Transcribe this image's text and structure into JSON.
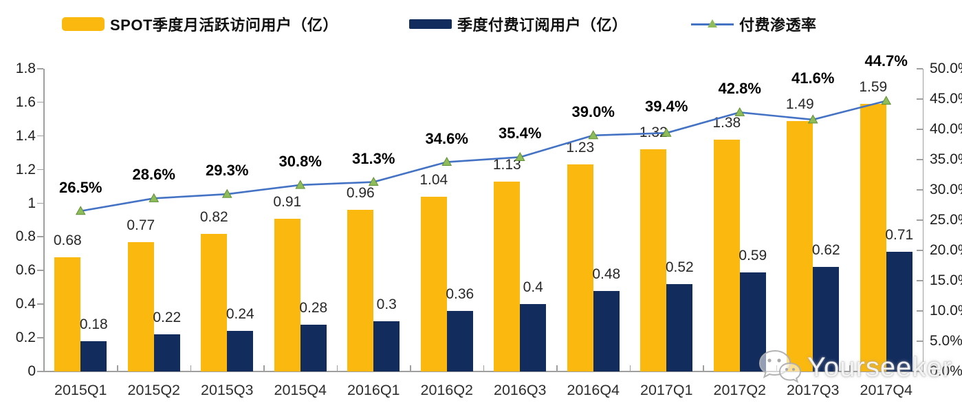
{
  "legend": {
    "items": [
      {
        "label": "SPOT季度月活跃访问用户（亿）",
        "color": "#FBB80F",
        "type": "bar"
      },
      {
        "label": "季度付费订阅用户（亿）",
        "color": "#122C5E",
        "type": "bar"
      },
      {
        "label": "付费渗透率",
        "color": "#4472C4",
        "marker_color": "#8FBC5A",
        "type": "line"
      }
    ]
  },
  "watermark": {
    "text": "Yourseeker",
    "icon": "wechat-icon"
  },
  "chart_data": {
    "type": "bar+line",
    "title": "",
    "categories": [
      "2015Q1",
      "2015Q2",
      "2015Q3",
      "2015Q4",
      "2016Q1",
      "2016Q2",
      "2016Q3",
      "2016Q4",
      "2017Q1",
      "2017Q2",
      "2017Q3",
      "2017Q4"
    ],
    "series": [
      {
        "name": "SPOT季度月活跃访问用户（亿）",
        "type": "bar",
        "axis": "left",
        "color": "#FBB80F",
        "values": [
          0.68,
          0.77,
          0.82,
          0.91,
          0.96,
          1.04,
          1.13,
          1.23,
          1.32,
          1.38,
          1.49,
          1.59
        ],
        "labels": [
          "0.68",
          "0.77",
          "0.82",
          "0.91",
          "0.96",
          "1.04",
          "1.13",
          "1.23",
          "1.32",
          "1.38",
          "1.49",
          "1.59"
        ]
      },
      {
        "name": "季度付费订阅用户（亿）",
        "type": "bar",
        "axis": "left",
        "color": "#122C5E",
        "values": [
          0.18,
          0.22,
          0.24,
          0.28,
          0.3,
          0.36,
          0.4,
          0.48,
          0.52,
          0.59,
          0.62,
          0.71
        ],
        "labels": [
          "0.18",
          "0.22",
          "0.24",
          "0.28",
          "0.3",
          "0.36",
          "0.4",
          "0.48",
          "0.52",
          "0.59",
          "0.62",
          "0.71"
        ]
      },
      {
        "name": "付费渗透率",
        "type": "line",
        "axis": "right",
        "color": "#4472C4",
        "marker_color": "#8FBC5A",
        "marker_edge": "#5E8F35",
        "values": [
          26.5,
          28.6,
          29.3,
          30.8,
          31.3,
          34.6,
          35.4,
          39.0,
          39.4,
          42.8,
          41.6,
          44.7
        ],
        "labels": [
          "26.5%",
          "28.6%",
          "29.3%",
          "30.8%",
          "31.3%",
          "34.6%",
          "35.4%",
          "39.0%",
          "39.4%",
          "42.8%",
          "41.6%",
          "44.7%"
        ]
      }
    ],
    "left_axis": {
      "min": 0,
      "max": 1.8,
      "step": 0.2,
      "ticks": [
        "0",
        "0.2",
        "0.4",
        "0.6",
        "0.8",
        "1",
        "1.2",
        "1.4",
        "1.6",
        "1.8"
      ]
    },
    "right_axis": {
      "min": 0,
      "max": 50,
      "step": 5,
      "ticks": [
        "0.0%",
        "5.0%",
        "10.0%",
        "15.0%",
        "20.0%",
        "25.0%",
        "30.0%",
        "35.0%",
        "40.0%",
        "45.0%",
        "50.0%"
      ]
    },
    "grid": false,
    "legend_position": "top"
  }
}
